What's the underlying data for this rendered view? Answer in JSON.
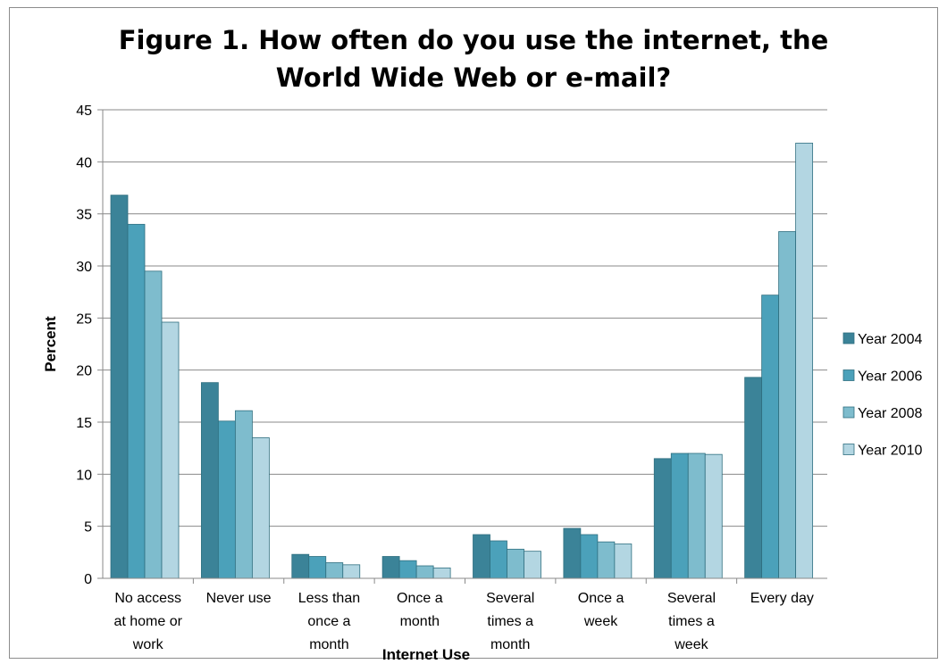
{
  "chart_data": {
    "type": "bar",
    "title_lines": [
      "Figure 1. How often do you use the internet, the",
      "World Wide Web or e-mail?"
    ],
    "xlabel": "Internet Use",
    "ylabel": "Percent",
    "ylim": [
      0,
      45
    ],
    "yticks": [
      0,
      5,
      10,
      15,
      20,
      25,
      30,
      35,
      40,
      45
    ],
    "grid": true,
    "legend_position": "right",
    "categories": [
      "No access at home or work",
      "Never use",
      "Less than once a month",
      "Once a month",
      "Several times a month",
      "Once a week",
      "Several times a week",
      "Every day"
    ],
    "category_label_lines": [
      [
        "No access",
        "at home or",
        "work"
      ],
      [
        "Never use"
      ],
      [
        "Less than",
        "once a",
        "month"
      ],
      [
        "Once a",
        "month"
      ],
      [
        "Several",
        "times a",
        "month"
      ],
      [
        "Once a",
        "week"
      ],
      [
        "Several",
        "times a",
        "week"
      ],
      [
        "Every day"
      ]
    ],
    "series": [
      {
        "name": "Year 2004",
        "color": "#3b8398",
        "values": [
          36.8,
          18.8,
          2.3,
          2.1,
          4.2,
          4.8,
          11.5,
          19.3
        ]
      },
      {
        "name": "Year 2006",
        "color": "#4ba1ba",
        "values": [
          34.0,
          15.1,
          2.1,
          1.7,
          3.6,
          4.2,
          12.0,
          27.2
        ]
      },
      {
        "name": "Year 2008",
        "color": "#7ebccd",
        "values": [
          29.5,
          16.1,
          1.5,
          1.2,
          2.8,
          3.5,
          12.0,
          33.3
        ]
      },
      {
        "name": "Year 2010",
        "color": "#b3d6e2",
        "values": [
          24.6,
          13.5,
          1.3,
          1.0,
          2.6,
          3.3,
          11.9,
          41.8
        ]
      }
    ]
  }
}
